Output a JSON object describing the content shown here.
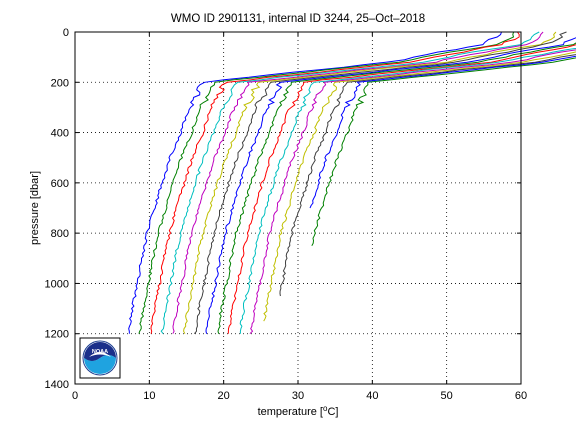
{
  "chart_data": {
    "type": "line",
    "title": "WMO ID 2901131, internal ID 3244, 25–Oct–2018",
    "xlabel_main": "temperature [",
    "xlabel_unit_sup": "o",
    "xlabel_unit": "C]",
    "ylabel": "pressure [dbar]",
    "xlim": [
      0,
      60
    ],
    "ylim": [
      1400,
      0
    ],
    "y_reversed": true,
    "xticks": [
      "0",
      "10",
      "20",
      "30",
      "40",
      "50",
      "60"
    ],
    "yticks": [
      "0",
      "200",
      "400",
      "600",
      "800",
      "1000",
      "1200",
      "1400"
    ],
    "grid": "dotted",
    "legend": "none",
    "logo": "noaa-logo",
    "colors": [
      "#0000ff",
      "#008000",
      "#ff0000",
      "#00bfbf",
      "#bf00bf",
      "#bfbf00",
      "#404040"
    ],
    "profile_shape": {
      "pressure": [
        0,
        20,
        50,
        80,
        120,
        160,
        200,
        260,
        320,
        400,
        500,
        600,
        700,
        800,
        900,
        1000,
        1100,
        1200
      ],
      "offset": [
        50,
        49.6,
        47.4,
        42,
        35,
        22.3,
        10,
        9,
        7.9,
        7,
        5.6,
        4.5,
        3.5,
        2.5,
        1.8,
        1.2,
        0.5,
        0
      ]
    },
    "series": [
      {
        "base": 7.2,
        "surface_jitter": 0,
        "max_p": 1200
      },
      {
        "base": 8.7,
        "surface_jitter": 0.4,
        "max_p": 1200
      },
      {
        "base": 10.2,
        "surface_jitter": -0.3,
        "max_p": 1200
      },
      {
        "base": 11.7,
        "surface_jitter": 0.5,
        "max_p": 1200
      },
      {
        "base": 13.2,
        "surface_jitter": -0.2,
        "max_p": 1200
      },
      {
        "base": 14.7,
        "surface_jitter": 0.3,
        "max_p": 1200
      },
      {
        "base": 16.2,
        "surface_jitter": -0.4,
        "max_p": 1200
      },
      {
        "base": 17.7,
        "surface_jitter": 0.2,
        "max_p": 1200
      },
      {
        "base": 19.2,
        "surface_jitter": 0.1,
        "max_p": 1200
      },
      {
        "base": 20.7,
        "surface_jitter": -0.3,
        "max_p": 1200
      },
      {
        "base": 22.2,
        "surface_jitter": 0.4,
        "max_p": 1200
      },
      {
        "base": 23.7,
        "surface_jitter": -0.1,
        "max_p": 1200
      },
      {
        "base": 25.2,
        "surface_jitter": 0.2,
        "max_p": 1150
      },
      {
        "base": 26.7,
        "surface_jitter": 0.3,
        "max_p": 1050
      },
      {
        "base": 28.2,
        "surface_jitter": -0.2,
        "max_p": 700
      },
      {
        "base": 29.7,
        "surface_jitter": 0.1,
        "max_p": 850
      }
    ]
  }
}
